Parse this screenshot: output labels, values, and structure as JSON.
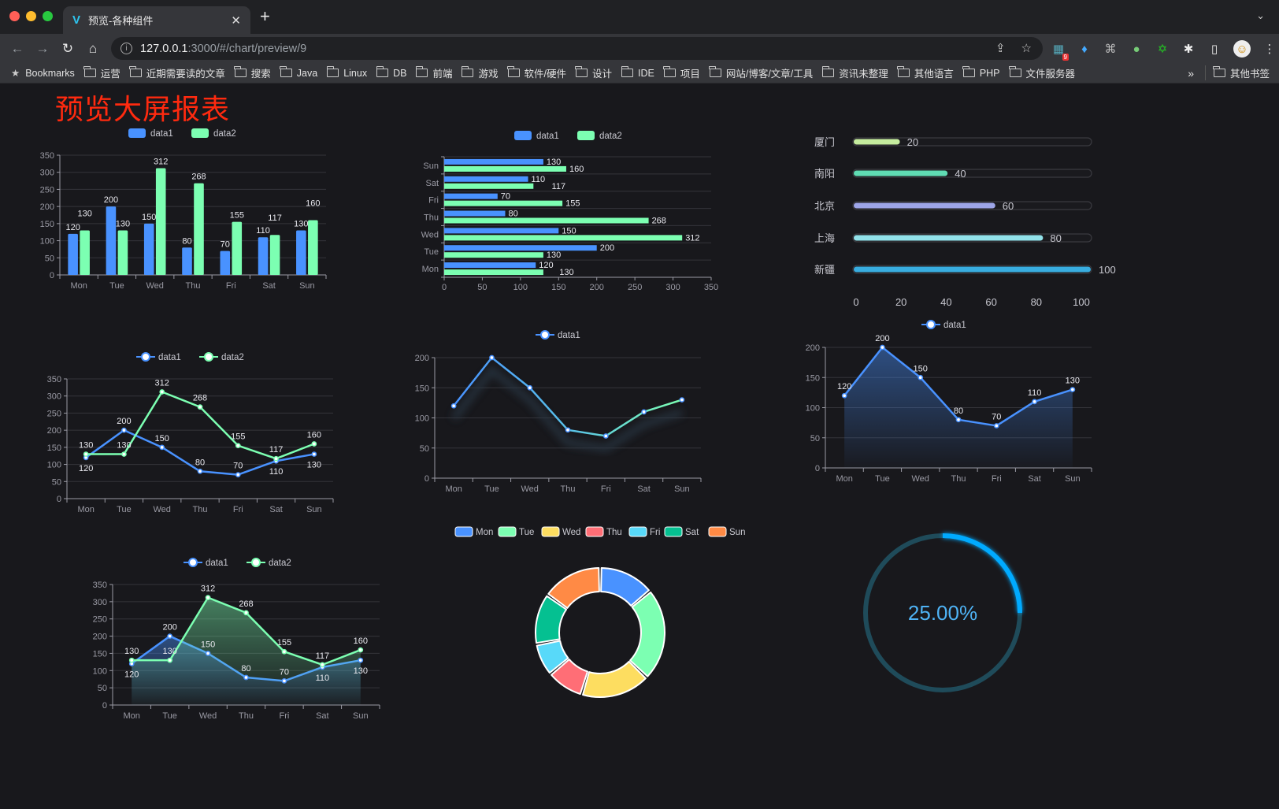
{
  "browser": {
    "tab_title": "预览-各种组件",
    "url_host": "127.0.0.1",
    "url_rest": ":3000/#/chart/preview/9",
    "extension_badge": "9",
    "bookmarks_label": "Bookmarks",
    "bookmark_folders": [
      "运营",
      "近期需要读的文章",
      "搜索",
      "Java",
      "Linux",
      "DB",
      "前端",
      "游戏",
      "软件/硬件",
      "设计",
      "IDE",
      "项目",
      "网站/博客/文章/工具",
      "资讯未整理",
      "其他语言",
      "PHP",
      "文件服务器"
    ],
    "more_bookmarks": "»",
    "other_bookmarks": "其他书签"
  },
  "page": {
    "title": "预览大屏报表"
  },
  "colors": {
    "blue": "#4992ff",
    "green": "#7cffb2",
    "yellow": "#fddd60",
    "red": "#ff6e76",
    "cyan": "#58d9f9",
    "teal": "#05c091",
    "orange": "#ff8a45",
    "background": "#18181c",
    "title": "#ff2a0f"
  },
  "chart_data": [
    {
      "type": "bar",
      "categories": [
        "Mon",
        "Tue",
        "Wed",
        "Thu",
        "Fri",
        "Sat",
        "Sun"
      ],
      "series": [
        {
          "name": "data1",
          "values": [
            120,
            200,
            150,
            80,
            70,
            110,
            130
          ]
        },
        {
          "name": "data2",
          "values": [
            130,
            130,
            312,
            268,
            155,
            117,
            160
          ]
        }
      ],
      "ylim": [
        0,
        350
      ],
      "yticks": [
        "0",
        "50",
        "100",
        "150",
        "200",
        "250",
        "300",
        "350"
      ],
      "legend": "top",
      "grid": true,
      "data_labels": true
    },
    {
      "type": "bar",
      "orientation": "horizontal",
      "categories": [
        "Mon",
        "Tue",
        "Wed",
        "Thu",
        "Fri",
        "Sat",
        "Sun"
      ],
      "series": [
        {
          "name": "data1",
          "values": [
            120,
            200,
            150,
            80,
            70,
            110,
            130
          ]
        },
        {
          "name": "data2",
          "values": [
            130,
            130,
            312,
            268,
            155,
            117,
            160
          ]
        }
      ],
      "xlim": [
        0,
        350
      ],
      "xticks": [
        "0",
        "50",
        "100",
        "150",
        "200",
        "250",
        "300",
        "350"
      ],
      "legend": "top",
      "grid": true,
      "data_labels": true
    },
    {
      "type": "line",
      "categories": [
        "Mon",
        "Tue",
        "Wed",
        "Thu",
        "Fri",
        "Sat",
        "Sun"
      ],
      "series": [
        {
          "name": "data1",
          "values": [
            120,
            200,
            150,
            80,
            70,
            110,
            130
          ]
        },
        {
          "name": "data2",
          "values": [
            130,
            130,
            312,
            268,
            155,
            117,
            160
          ]
        }
      ],
      "ylim": [
        0,
        350
      ],
      "yticks": [
        "0",
        "50",
        "100",
        "150",
        "200",
        "250",
        "300",
        "350"
      ],
      "legend": "top",
      "grid": true,
      "data_labels": true
    },
    {
      "type": "line",
      "categories": [
        "Mon",
        "Tue",
        "Wed",
        "Thu",
        "Fri",
        "Sat",
        "Sun"
      ],
      "series": [
        {
          "name": "data1",
          "values": [
            120,
            200,
            150,
            80,
            70,
            110,
            130
          ]
        }
      ],
      "ylim": [
        0,
        200
      ],
      "yticks": [
        "0",
        "50",
        "100",
        "150",
        "200"
      ],
      "legend": "top",
      "grid": true,
      "data_labels": false
    },
    {
      "type": "area",
      "categories": [
        "Mon",
        "Tue",
        "Wed",
        "Thu",
        "Fri",
        "Sat",
        "Sun"
      ],
      "series": [
        {
          "name": "data1",
          "values": [
            120,
            200,
            150,
            80,
            70,
            110,
            130
          ]
        }
      ],
      "ylim": [
        0,
        200
      ],
      "yticks": [
        "0",
        "50",
        "100",
        "150",
        "200"
      ],
      "legend": "top",
      "grid": true,
      "data_labels": true
    },
    {
      "type": "area",
      "categories": [
        "Mon",
        "Tue",
        "Wed",
        "Thu",
        "Fri",
        "Sat",
        "Sun"
      ],
      "series": [
        {
          "name": "data1",
          "values": [
            120,
            200,
            150,
            80,
            70,
            110,
            130
          ]
        },
        {
          "name": "data2",
          "values": [
            130,
            130,
            312,
            268,
            155,
            117,
            160
          ]
        }
      ],
      "ylim": [
        0,
        350
      ],
      "yticks": [
        "0",
        "50",
        "100",
        "150",
        "200",
        "250",
        "300",
        "350"
      ],
      "legend": "top",
      "grid": true,
      "data_labels": true
    },
    {
      "type": "pie",
      "variant": "donut",
      "categories": [
        "Mon",
        "Tue",
        "Wed",
        "Thu",
        "Fri",
        "Sat",
        "Sun"
      ],
      "values": [
        120,
        200,
        150,
        80,
        70,
        110,
        130
      ],
      "colors": [
        "#4992ff",
        "#7cffb2",
        "#fddd60",
        "#ff6e76",
        "#58d9f9",
        "#05c091",
        "#ff8a45"
      ],
      "legend": "top"
    },
    {
      "type": "bar",
      "orientation": "horizontal",
      "variant": "progress",
      "categories": [
        "厦门",
        "南阳",
        "北京",
        "上海",
        "新疆"
      ],
      "values": [
        20,
        40,
        60,
        80,
        100
      ],
      "labels": [
        "20",
        "40",
        "60",
        "80",
        "100"
      ],
      "colors": [
        "#c5ec9e",
        "#5fdcb3",
        "#9da5e8",
        "#92e2ea",
        "#38ade0"
      ],
      "xlim": [
        0,
        100
      ],
      "xticks": [
        "0",
        "20",
        "40",
        "60",
        "80",
        "100"
      ]
    },
    {
      "type": "gauge",
      "value": 25,
      "max": 100,
      "label": "25.00%",
      "color": "#00aaff",
      "track_color": "#1f4b5a"
    }
  ]
}
